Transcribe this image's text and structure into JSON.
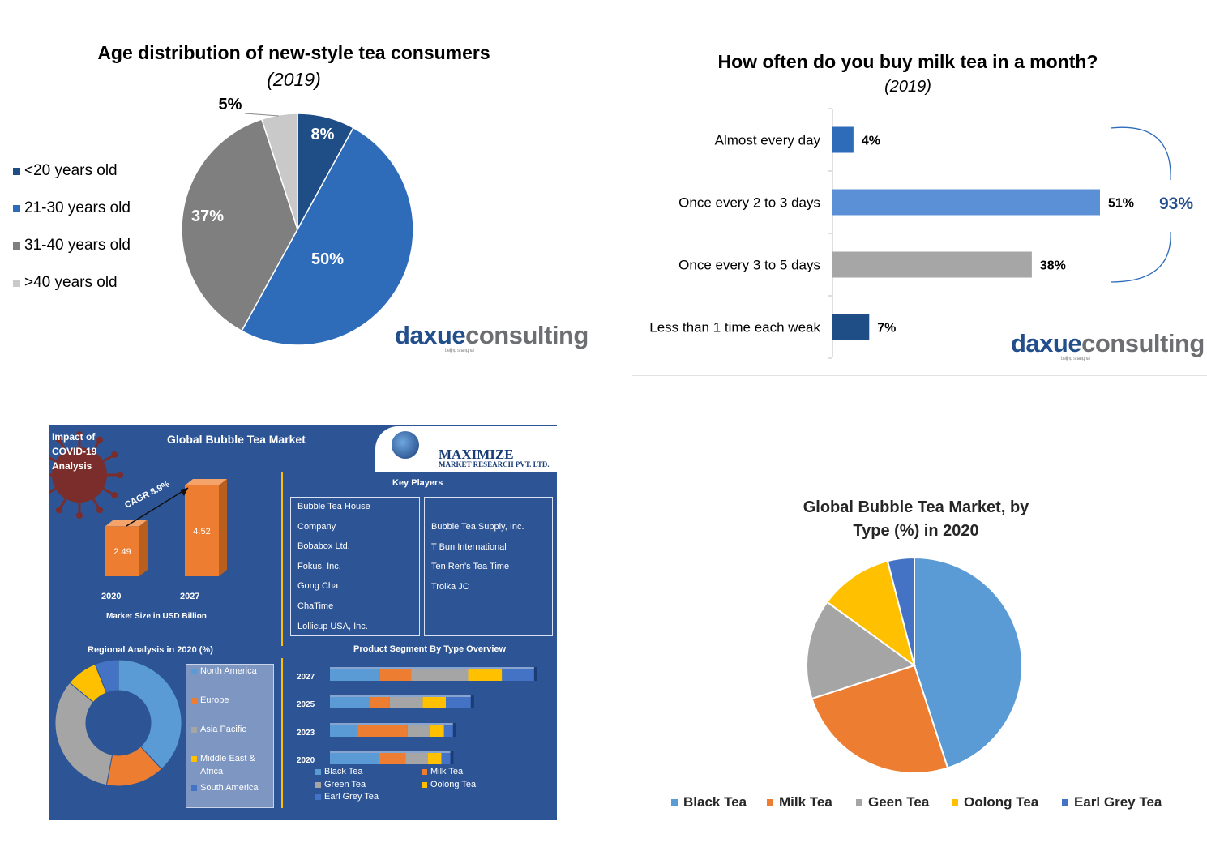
{
  "chart_data": [
    {
      "type": "pie",
      "title": "Age distribution of new-style tea consumers",
      "subtitle": "(2019)",
      "categories": [
        "<20 years old",
        "21-30 years old",
        "31-40 years old",
        ">40 years old"
      ],
      "values": [
        8,
        50,
        37,
        5
      ],
      "value_labels": [
        "8%",
        "50%",
        "37%",
        "5%"
      ],
      "colors": [
        "#1f4e87",
        "#2e6bb8",
        "#7f7f7f",
        "#c9c9c9"
      ],
      "legend_position": "left"
    },
    {
      "type": "bar",
      "orientation": "horizontal",
      "title": "How often do you buy milk tea in a month?",
      "subtitle": "(2019)",
      "categories": [
        "Almost every day",
        "Once every 2 to 3 days",
        "Once every 3 to 5 days",
        "Less than 1 time each weak"
      ],
      "values": [
        4,
        51,
        38,
        7
      ],
      "value_labels": [
        "4%",
        "51%",
        "38%",
        "7%"
      ],
      "colors": [
        "#2e6bb8",
        "#5b90d6",
        "#a6a6a6",
        "#1f4e87"
      ],
      "annotation": "93%"
    },
    {
      "type": "pie",
      "title": "Global Bubble Tea Market, by Type (%) in 2020",
      "categories": [
        "Black Tea",
        "Milk Tea",
        "Geen Tea",
        "Oolong Tea",
        "Earl Grey Tea"
      ],
      "values": [
        45,
        25,
        15,
        11,
        4
      ],
      "colors": [
        "#5b9bd5",
        "#ed7d31",
        "#a5a5a5",
        "#ffc000",
        "#4472c4"
      ],
      "legend_position": "bottom"
    }
  ],
  "branding": {
    "logo_left": "daxue",
    "logo_right": "consulting",
    "logo_sub": "beijing shanghai"
  },
  "infographic": {
    "covid_label": "Impact of COVID-19 Analysis",
    "title": "Global Bubble Tea Market",
    "brand_name": "MAXIMIZE",
    "brand_sub": "MARKET RESEARCH PVT. LTD.",
    "cagr": "CAGR 8.9%",
    "market_size": {
      "years": [
        "2020",
        "2027"
      ],
      "values": [
        2.49,
        4.52
      ],
      "value_labels": [
        "2.49",
        "4.52"
      ],
      "caption": "Market Size in USD Billion",
      "color": "#ed7d31"
    },
    "key_players_title": "Key Players",
    "key_players_left": [
      "Bubble Tea House",
      "Company",
      "Bobabox Ltd.",
      "Fokus, Inc.",
      "Gong Cha",
      "ChaTime",
      "Lollicup USA, Inc."
    ],
    "key_players_right": [
      "Bubble Tea Supply, Inc.",
      "T Bun International",
      "Ten Ren's Tea Time",
      "Troika JC"
    ],
    "regional": {
      "title": "Regional Analysis in 2020 (%)",
      "categories": [
        "North America",
        "Europe",
        "Asia Pacific",
        "Middle East & Africa",
        "South America"
      ],
      "values": [
        38,
        15,
        33,
        8,
        6
      ],
      "colors": [
        "#5b9bd5",
        "#ed7d31",
        "#a5a5a5",
        "#ffc000",
        "#4472c4"
      ]
    },
    "product_segment": {
      "title": "Product Segment By Type Overview",
      "years": [
        "2027",
        "2025",
        "2023",
        "2020"
      ],
      "series_names": [
        "Black Tea",
        "Milk Tea",
        "Green Tea",
        "Oolong Tea",
        "Earl Grey Tea"
      ],
      "colors": [
        "#5b9bd5",
        "#ed7d31",
        "#a5a5a5",
        "#ffc000",
        "#4472c4"
      ],
      "values": [
        [
          56,
          35,
          64,
          38,
          36
        ],
        [
          44,
          23,
          37,
          26,
          28
        ],
        [
          31,
          56,
          25,
          16,
          10
        ],
        [
          55,
          30,
          25,
          15,
          10
        ]
      ]
    }
  }
}
